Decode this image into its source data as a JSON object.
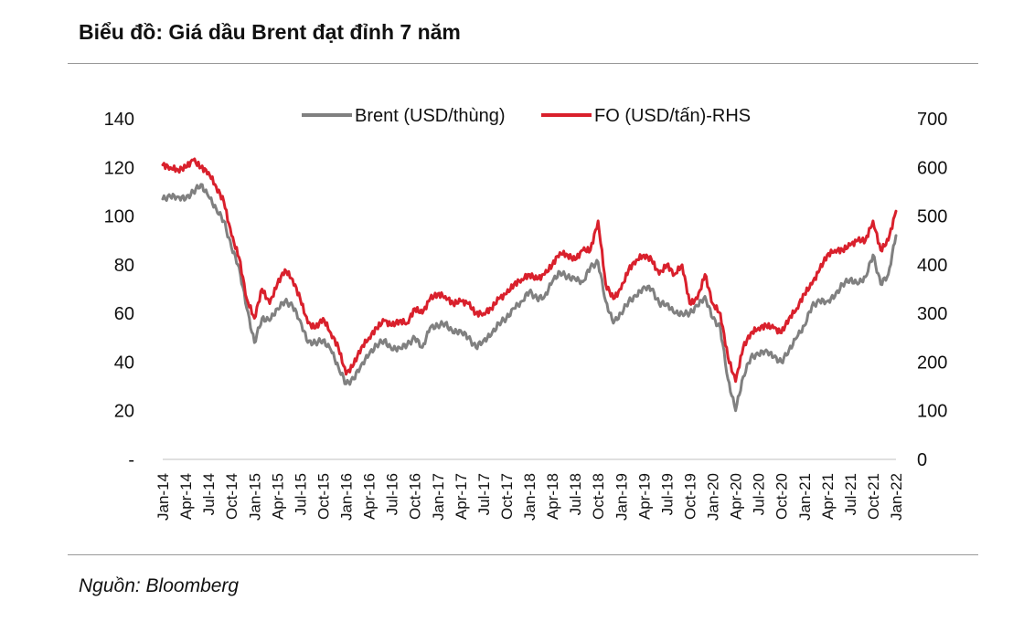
{
  "title": "Biểu đồ: Giá dầu Brent đạt đỉnh 7 năm",
  "source": "Nguồn: Bloomberg",
  "chart_data": {
    "type": "line",
    "title": "Biểu đồ: Giá dầu Brent đạt đỉnh 7 năm",
    "x_ticks": [
      "Jan-14",
      "Apr-14",
      "Jul-14",
      "Oct-14",
      "Jan-15",
      "Apr-15",
      "Jul-15",
      "Oct-15",
      "Jan-16",
      "Apr-16",
      "Jul-16",
      "Oct-16",
      "Jan-17",
      "Apr-17",
      "Jul-17",
      "Oct-17",
      "Jan-18",
      "Apr-18",
      "Jul-18",
      "Oct-18",
      "Jan-19",
      "Apr-19",
      "Jul-19",
      "Oct-19",
      "Jan-20",
      "Apr-20",
      "Jul-20",
      "Oct-20",
      "Jan-21",
      "Apr-21",
      "Jul-21",
      "Oct-21",
      "Jan-22"
    ],
    "y_left": {
      "range": [
        0,
        140
      ],
      "ticks": [
        0,
        20,
        40,
        60,
        80,
        100,
        120,
        140
      ],
      "tick_labels": [
        "-",
        "20",
        "40",
        "60",
        "80",
        "100",
        "120",
        "140"
      ]
    },
    "y_right": {
      "range": [
        0,
        700
      ],
      "ticks": [
        0,
        100,
        200,
        300,
        400,
        500,
        600,
        700
      ],
      "tick_labels": [
        "0",
        "100",
        "200",
        "300",
        "400",
        "500",
        "600",
        "700"
      ]
    },
    "legend_position": "top-center",
    "grid": false,
    "series": [
      {
        "name": "Brent (USD/thùng)",
        "axis": "left",
        "color": "#808080",
        "x": [
          "Jan-14",
          "Feb-14",
          "Mar-14",
          "Apr-14",
          "May-14",
          "Jun-14",
          "Jul-14",
          "Aug-14",
          "Sep-14",
          "Oct-14",
          "Nov-14",
          "Dec-14",
          "Jan-15",
          "Feb-15",
          "Mar-15",
          "Apr-15",
          "May-15",
          "Jun-15",
          "Jul-15",
          "Aug-15",
          "Sep-15",
          "Oct-15",
          "Nov-15",
          "Dec-15",
          "Jan-16",
          "Feb-16",
          "Mar-16",
          "Apr-16",
          "May-16",
          "Jun-16",
          "Jul-16",
          "Aug-16",
          "Sep-16",
          "Oct-16",
          "Nov-16",
          "Dec-16",
          "Jan-17",
          "Feb-17",
          "Mar-17",
          "Apr-17",
          "May-17",
          "Jun-17",
          "Jul-17",
          "Aug-17",
          "Sep-17",
          "Oct-17",
          "Nov-17",
          "Dec-17",
          "Jan-18",
          "Feb-18",
          "Mar-18",
          "Apr-18",
          "May-18",
          "Jun-18",
          "Jul-18",
          "Aug-18",
          "Sep-18",
          "Oct-18",
          "Nov-18",
          "Dec-18",
          "Jan-19",
          "Feb-19",
          "Mar-19",
          "Apr-19",
          "May-19",
          "Jun-19",
          "Jul-19",
          "Aug-19",
          "Sep-19",
          "Oct-19",
          "Nov-19",
          "Dec-19",
          "Jan-20",
          "Feb-20",
          "Mar-20",
          "Apr-20",
          "May-20",
          "Jun-20",
          "Jul-20",
          "Aug-20",
          "Sep-20",
          "Oct-20",
          "Nov-20",
          "Dec-20",
          "Jan-21",
          "Feb-21",
          "Mar-21",
          "Apr-21",
          "May-21",
          "Jun-21",
          "Jul-21",
          "Aug-21",
          "Sep-21",
          "Oct-21",
          "Nov-21",
          "Dec-21",
          "Jan-22"
        ],
        "values": [
          107,
          108,
          108,
          107,
          110,
          113,
          108,
          103,
          98,
          87,
          79,
          62,
          48,
          58,
          57,
          62,
          65,
          63,
          57,
          48,
          48,
          49,
          45,
          38,
          31,
          33,
          39,
          43,
          47,
          49,
          45,
          46,
          47,
          50,
          46,
          54,
          55,
          56,
          52,
          53,
          50,
          46,
          49,
          51,
          56,
          58,
          62,
          65,
          69,
          66,
          67,
          73,
          77,
          75,
          74,
          73,
          79,
          81,
          65,
          56,
          60,
          65,
          67,
          71,
          70,
          64,
          64,
          60,
          60,
          60,
          63,
          67,
          58,
          54,
          33,
          20,
          34,
          42,
          43,
          45,
          42,
          40,
          45,
          50,
          55,
          63,
          65,
          65,
          67,
          72,
          74,
          72,
          75,
          84,
          72,
          76,
          92
        ]
      },
      {
        "name": "FO (USD/tấn)-RHS",
        "axis": "right",
        "color": "#d9202c",
        "x": [
          "Jan-14",
          "Feb-14",
          "Mar-14",
          "Apr-14",
          "May-14",
          "Jun-14",
          "Jul-14",
          "Aug-14",
          "Sep-14",
          "Oct-14",
          "Nov-14",
          "Dec-14",
          "Jan-15",
          "Feb-15",
          "Mar-15",
          "Apr-15",
          "May-15",
          "Jun-15",
          "Jul-15",
          "Aug-15",
          "Sep-15",
          "Oct-15",
          "Nov-15",
          "Dec-15",
          "Jan-16",
          "Feb-16",
          "Mar-16",
          "Apr-16",
          "May-16",
          "Jun-16",
          "Jul-16",
          "Aug-16",
          "Sep-16",
          "Oct-16",
          "Nov-16",
          "Dec-16",
          "Jan-17",
          "Feb-17",
          "Mar-17",
          "Apr-17",
          "May-17",
          "Jun-17",
          "Jul-17",
          "Aug-17",
          "Sep-17",
          "Oct-17",
          "Nov-17",
          "Dec-17",
          "Jan-18",
          "Feb-18",
          "Mar-18",
          "Apr-18",
          "May-18",
          "Jun-18",
          "Jul-18",
          "Aug-18",
          "Sep-18",
          "Oct-18",
          "Nov-18",
          "Dec-18",
          "Jan-19",
          "Feb-19",
          "Mar-19",
          "Apr-19",
          "May-19",
          "Jun-19",
          "Jul-19",
          "Aug-19",
          "Sep-19",
          "Oct-19",
          "Nov-19",
          "Dec-19",
          "Jan-20",
          "Feb-20",
          "Mar-20",
          "Apr-20",
          "May-20",
          "Jun-20",
          "Jul-20",
          "Aug-20",
          "Sep-20",
          "Oct-20",
          "Nov-20",
          "Dec-20",
          "Jan-21",
          "Feb-21",
          "Mar-21",
          "Apr-21",
          "May-21",
          "Jun-21",
          "Jul-21",
          "Aug-21",
          "Sep-21",
          "Oct-21",
          "Nov-21",
          "Dec-21",
          "Jan-22"
        ],
        "values": [
          605,
          600,
          595,
          600,
          615,
          600,
          590,
          560,
          530,
          460,
          415,
          330,
          290,
          350,
          320,
          360,
          390,
          370,
          330,
          280,
          270,
          290,
          260,
          230,
          175,
          195,
          230,
          250,
          270,
          285,
          275,
          285,
          280,
          310,
          300,
          330,
          340,
          335,
          320,
          325,
          320,
          300,
          300,
          310,
          330,
          340,
          360,
          370,
          380,
          370,
          380,
          400,
          425,
          420,
          410,
          430,
          430,
          490,
          360,
          330,
          350,
          390,
          410,
          420,
          410,
          380,
          400,
          380,
          400,
          320,
          330,
          380,
          320,
          300,
          210,
          160,
          230,
          260,
          270,
          275,
          270,
          260,
          290,
          310,
          340,
          360,
          390,
          420,
          430,
          430,
          440,
          450,
          450,
          490,
          430,
          450,
          510
        ]
      }
    ]
  }
}
